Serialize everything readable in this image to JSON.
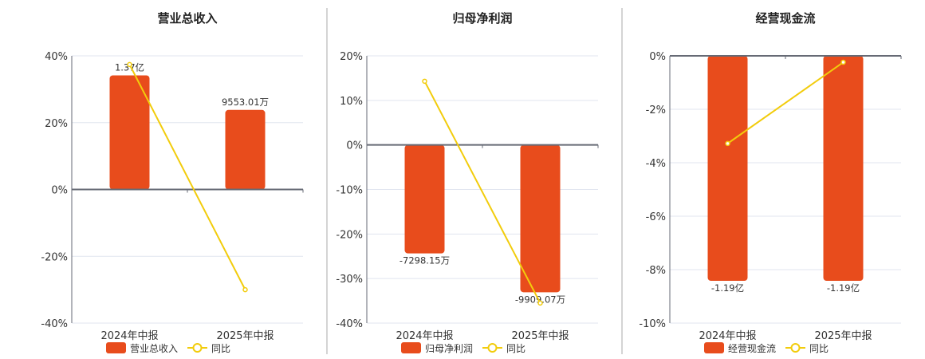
{
  "colors": {
    "bar": "#e84c1c",
    "line": "#f2cc0c",
    "grid": "#e1e5ef",
    "axis": "#666a75",
    "divider": "#aaaaaa"
  },
  "chart_data": [
    {
      "type": "bar+line",
      "title": "营业总收入",
      "categories": [
        "2024年中报",
        "2025年中报"
      ],
      "bar_series": {
        "name": "营业总收入",
        "values": [
          13700,
          9553.01
        ],
        "unit": "万",
        "labels": [
          "1.37亿",
          "9553.01万"
        ]
      },
      "line_series": {
        "name": "同比",
        "values": [
          37.4,
          -30.0
        ],
        "unit": "%"
      },
      "ylim": [
        -40,
        40
      ],
      "yticks": [
        "40%",
        "20%",
        "0%",
        "-20%",
        "-40%"
      ],
      "ytick_values": [
        40,
        20,
        0,
        -20,
        -40
      ],
      "legend": "bottom"
    },
    {
      "type": "bar+line",
      "title": "归母净利润",
      "categories": [
        "2024年中报",
        "2025年中报"
      ],
      "bar_series": {
        "name": "归母净利润",
        "values": [
          -7298.15,
          -9909.07
        ],
        "unit": "万",
        "labels": [
          "-7298.15万",
          "-9909.07万"
        ]
      },
      "line_series": {
        "name": "同比",
        "values": [
          14.3,
          -35.5
        ],
        "unit": "%"
      },
      "ylim": [
        -40,
        20
      ],
      "yticks": [
        "20%",
        "10%",
        "0%",
        "-10%",
        "-20%",
        "-30%",
        "-40%"
      ],
      "ytick_values": [
        20,
        10,
        0,
        -10,
        -20,
        -30,
        -40
      ],
      "legend": "bottom"
    },
    {
      "type": "bar+line",
      "title": "经营现金流",
      "categories": [
        "2024年中报",
        "2025年中报"
      ],
      "bar_series": {
        "name": "经营现金流",
        "values": [
          -11900,
          -11900
        ],
        "unit": "万",
        "labels": [
          "-1.19亿",
          "-1.19亿"
        ]
      },
      "line_series": {
        "name": "同比",
        "values": [
          -3.28,
          -0.24
        ],
        "unit": "%"
      },
      "ylim": [
        -10,
        0
      ],
      "yticks": [
        "0%",
        "-2%",
        "-4%",
        "-6%",
        "-8%",
        "-10%"
      ],
      "ytick_values": [
        0,
        -2,
        -4,
        -6,
        -8,
        -10
      ],
      "legend": "bottom"
    }
  ]
}
